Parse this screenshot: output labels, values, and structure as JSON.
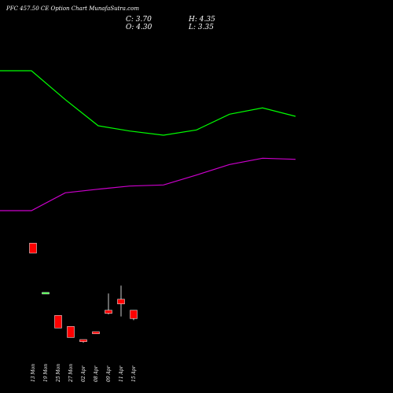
{
  "header": {
    "title": "PFC 457.50  CE Option  Chart MunafaSutra.com",
    "open_label": "O:",
    "open_value": "4.30",
    "close_label": "C:",
    "close_value": "3.70",
    "high_label": "H:",
    "high_value": "4.35",
    "low_label": "L:",
    "low_value": "3.35"
  },
  "chart_data": {
    "type": "candlestick",
    "title": "PFC 457.50  CE Option  Chart MunafaSutra.com",
    "categories": [
      "13 Mon",
      "19 Mon",
      "25 Mon",
      "27 Mon",
      "02 Apr",
      "08 Apr",
      "09 Apr",
      "11 Apr",
      "15 Apr"
    ],
    "candles": [
      {
        "open": 19.6,
        "high": 19.6,
        "low": 17.7,
        "close": 17.7,
        "color": "#ff0000"
      },
      {
        "open": 10.2,
        "high": 10.2,
        "low": 10.0,
        "close": 10.0,
        "color": "#33ff33"
      },
      {
        "open": 5.8,
        "high": 5.8,
        "low": 3.4,
        "close": 3.4,
        "color": "#ff0000"
      },
      {
        "open": 3.7,
        "high": 3.7,
        "low": 1.6,
        "close": 1.6,
        "color": "#ff0000"
      },
      {
        "open": 1.2,
        "high": 1.2,
        "low": 0.6,
        "close": 0.8,
        "color": "#ff0000"
      },
      {
        "open": 2.7,
        "high": 2.7,
        "low": 2.3,
        "close": 2.3,
        "color": "#ff0000"
      },
      {
        "open": 6.8,
        "high": 10.0,
        "low": 6.0,
        "close": 6.2,
        "color": "#ff0000"
      },
      {
        "open": 8.9,
        "high": 11.5,
        "low": 5.6,
        "close": 8.0,
        "color": "#ff0000"
      },
      {
        "open": 6.8,
        "high": 6.8,
        "low": 4.9,
        "close": 5.2,
        "color": "#ff0000"
      }
    ],
    "series": [
      {
        "type": "line",
        "color": "#00ff00",
        "x": [
          0,
          40,
          83,
          125,
          165,
          208,
          250,
          292,
          334,
          376
        ],
        "values": [
          52.5,
          52.5,
          47.0,
          42.0,
          41.0,
          40.2,
          41.2,
          44.2,
          45.4,
          43.8
        ]
      },
      {
        "type": "line",
        "color": "#cc00cc",
        "x": [
          0,
          40,
          83,
          125,
          165,
          208,
          250,
          292,
          334,
          376
        ],
        "values": [
          25.8,
          25.8,
          29.2,
          29.9,
          30.5,
          30.7,
          32.6,
          34.6,
          35.8,
          35.6
        ]
      }
    ],
    "ylim": [
      0,
      60
    ]
  }
}
